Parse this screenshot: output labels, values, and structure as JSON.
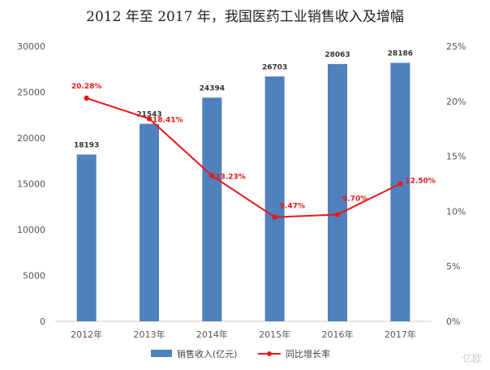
{
  "chart_data": {
    "type": "bar",
    "title": "2012 年至 2017 年，我国医药工业销售收入及增幅",
    "categories": [
      "2012年",
      "2013年",
      "2014年",
      "2015年",
      "2016年",
      "2017年"
    ],
    "series": [
      {
        "name": "销售收入(亿元)",
        "type": "bar",
        "axis": "left",
        "values": [
          18193,
          21543,
          24394,
          26703,
          28063,
          28186
        ],
        "labels": [
          "18193",
          "21543",
          "24394",
          "26703",
          "28063",
          "28186"
        ],
        "color": "#4f81bd"
      },
      {
        "name": "同比增长率",
        "type": "line",
        "axis": "right",
        "values": [
          20.28,
          18.41,
          13.23,
          9.47,
          9.7,
          12.5
        ],
        "labels": [
          "20.28%",
          "18.41%",
          "13.23%",
          "9.47%",
          "9.70%",
          "12.50%"
        ],
        "color": "#e8171c"
      }
    ],
    "y_left": {
      "ylim": [
        0,
        30000
      ],
      "ticks": [
        "0",
        "5000",
        "10000",
        "15000",
        "20000",
        "25000",
        "30000"
      ]
    },
    "y_right": {
      "ylim": [
        0,
        25
      ],
      "ticks": [
        "0%",
        "5%",
        "10%",
        "15%",
        "20%",
        "25%"
      ]
    },
    "legend_position": "bottom",
    "grid": false
  },
  "watermark": "亿欧"
}
